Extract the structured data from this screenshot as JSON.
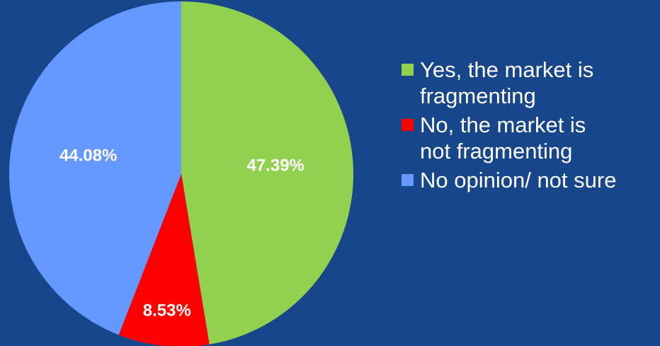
{
  "chart_data": {
    "type": "pie",
    "categories": [
      "Yes, the market is\nfragmenting",
      "No, the market is\nnot fragmenting",
      "No opinion/ not sure"
    ],
    "values": [
      47.39,
      8.53,
      44.08
    ],
    "labels": [
      "47.39%",
      "8.53%",
      "44.08%"
    ],
    "colors": [
      "#92d050",
      "#ff0000",
      "#6699ff"
    ],
    "legend": "right"
  }
}
